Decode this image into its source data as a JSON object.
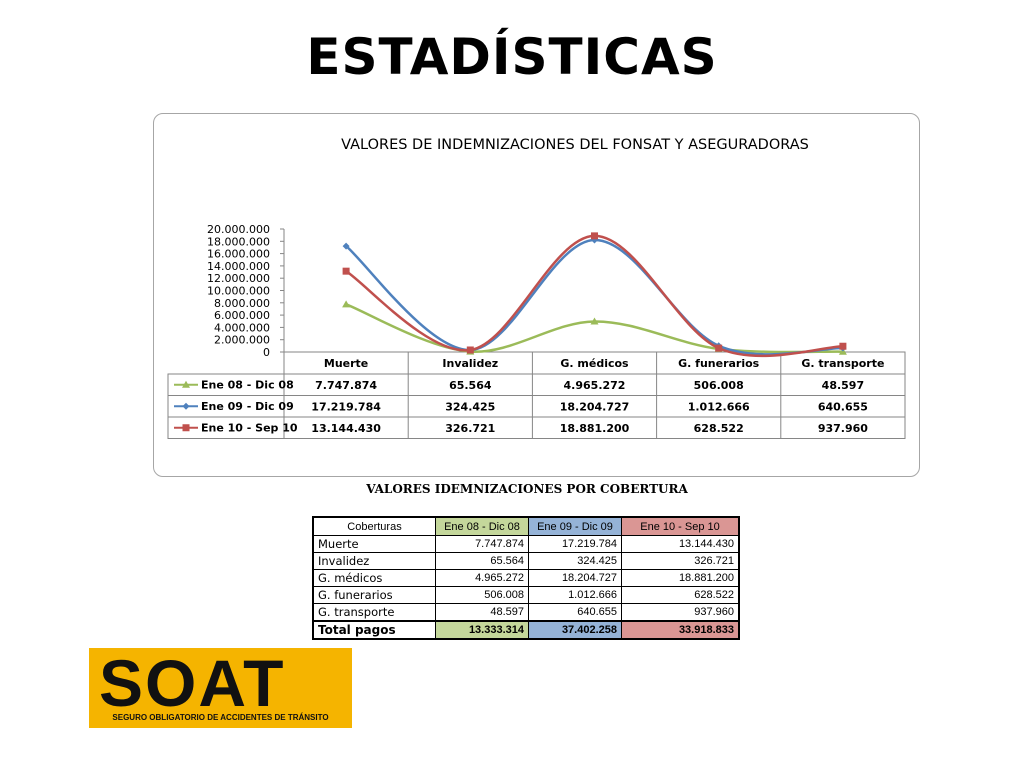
{
  "page": {
    "title": "ESTADÍSTICAS"
  },
  "chart_data": {
    "type": "line",
    "title": "VALORES  DE INDEMNIZACIONES DEL FONSAT Y ASEGURADORAS",
    "categories": [
      "Muerte",
      "Invalidez",
      "G. médicos",
      "G. funerarios",
      "G. transporte"
    ],
    "series": [
      {
        "name": "Ene 08 - Dic 08",
        "color": "#9bbb59",
        "marker": "triangle",
        "values": [
          7747874,
          65564,
          4965272,
          506008,
          48597
        ],
        "labels": [
          "7.747.874",
          "65.564",
          "4.965.272",
          "506.008",
          "48.597"
        ]
      },
      {
        "name": "Ene 09 - Dic 09",
        "color": "#4f81bd",
        "marker": "diamond",
        "values": [
          17219784,
          324425,
          18204727,
          1012666,
          640655
        ],
        "labels": [
          "17.219.784",
          "324.425",
          "18.204.727",
          "1.012.666",
          "640.655"
        ]
      },
      {
        "name": "Ene 10 - Sep 10",
        "color": "#c0504d",
        "marker": "square",
        "values": [
          13144430,
          326721,
          18881200,
          628522,
          937960
        ],
        "labels": [
          "13.144.430",
          "326.721",
          "18.881.200",
          "628.522",
          "937.960"
        ]
      }
    ],
    "ylim": [
      0,
      20000000
    ],
    "yticks": [
      0,
      2000000,
      4000000,
      6000000,
      8000000,
      10000000,
      12000000,
      14000000,
      16000000,
      18000000,
      20000000
    ],
    "ytick_labels": [
      "0",
      "2.000.000",
      "4.000.000",
      "6.000.000",
      "8.000.000",
      "10.000.000",
      "12.000.000",
      "14.000.000",
      "16.000.000",
      "18.000.000",
      "20.000.000"
    ],
    "smooth": true,
    "legend": "data-table"
  },
  "coverage_table": {
    "caption": "VALORES IDEMNIZACIONES  POR  COBERTURA",
    "header": [
      "Coberturas",
      "Ene 08 - Dic 08",
      "Ene 09 - Dic 09",
      "Ene 10 - Sep 10"
    ],
    "header_colors": [
      "#ffffff",
      "#c4d79b",
      "#95b3d7",
      "#da9694"
    ],
    "rows": [
      [
        "Muerte",
        "7.747.874",
        "17.219.784",
        "13.144.430"
      ],
      [
        "Invalidez",
        "65.564",
        "324.425",
        "326.721"
      ],
      [
        "G. médicos",
        "4.965.272",
        "18.204.727",
        "18.881.200"
      ],
      [
        "G. funerarios",
        "506.008",
        "1.012.666",
        "628.522"
      ],
      [
        "G. transporte",
        "48.597",
        "640.655",
        "937.960"
      ]
    ],
    "total": [
      "Total pagos",
      "13.333.314",
      "37.402.258",
      "33.918.833"
    ]
  },
  "logo": {
    "word": "SOAT",
    "subtitle": "SEGURO OBLIGATORIO DE ACCIDENTES DE TRÁNSITO",
    "background": "#f5b400"
  }
}
